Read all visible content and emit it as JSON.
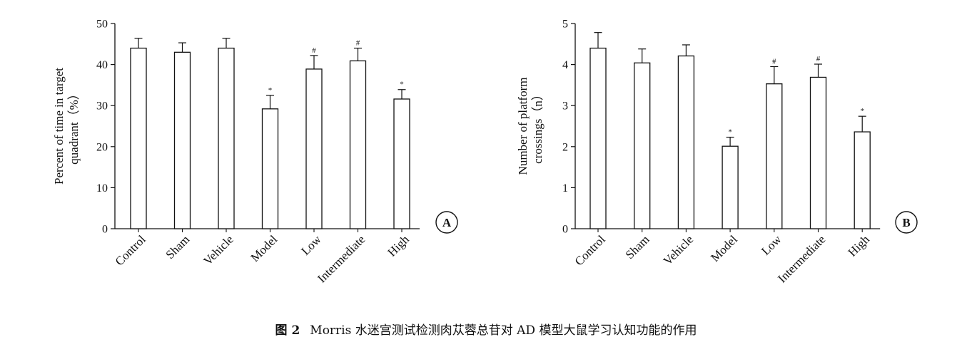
{
  "caption": {
    "label": "图 2",
    "text": "Morris 水迷宫测试检测肉苁蓉总苷对 AD 模型大鼠学习认知功能的作用"
  },
  "chart_data": [
    {
      "type": "bar",
      "panel_label": "A",
      "categories": [
        "Control",
        "Sham",
        "Vehicle",
        "Model",
        "Low",
        "Intermediate",
        "High"
      ],
      "values": [
        44.0,
        43.0,
        44.0,
        29.2,
        38.9,
        40.9,
        31.6
      ],
      "errors": [
        2.4,
        2.3,
        2.4,
        3.3,
        3.3,
        3.1,
        2.3
      ],
      "annotations": [
        "",
        "",
        "",
        "*",
        "#",
        "#",
        "*"
      ],
      "ylabel_line1": "Percent of time in target",
      "ylabel_line2": "quadrant（%）",
      "ylim": [
        0,
        50
      ],
      "yticks": [
        0,
        10,
        20,
        30,
        40,
        50
      ],
      "grid": false,
      "bar_fill": "#ffffff",
      "line_color": "#111111"
    },
    {
      "type": "bar",
      "panel_label": "B",
      "categories": [
        "Control",
        "Sham",
        "Vehicle",
        "Model",
        "Low",
        "Intermediate",
        "High"
      ],
      "values": [
        4.4,
        4.04,
        4.21,
        2.01,
        3.53,
        3.69,
        2.36
      ],
      "errors": [
        0.38,
        0.34,
        0.27,
        0.22,
        0.42,
        0.32,
        0.38
      ],
      "annotations": [
        "",
        "",
        "",
        "*",
        "#",
        "#",
        "*"
      ],
      "ylabel_line1": "Number of platform",
      "ylabel_line2": "crossings（n）",
      "ylim": [
        0,
        5
      ],
      "yticks": [
        0,
        1,
        2,
        3,
        4,
        5
      ],
      "grid": false,
      "bar_fill": "#ffffff",
      "line_color": "#111111"
    }
  ]
}
